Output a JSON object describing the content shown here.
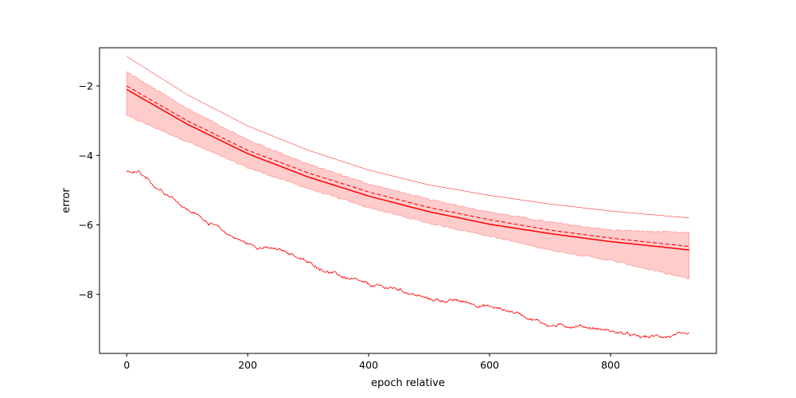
{
  "chart_data": {
    "type": "line",
    "title": "",
    "xlabel": "epoch relative",
    "ylabel": "error",
    "xlim": [
      -45,
      975
    ],
    "ylim": [
      -9.7,
      -0.9
    ],
    "x_ticks": [
      0,
      200,
      400,
      600,
      800
    ],
    "y_ticks": [
      -2,
      -4,
      -6,
      -8
    ],
    "x_tick_labels": [
      "0",
      "200",
      "400",
      "600",
      "800"
    ],
    "y_tick_labels": [
      "−2",
      "−4",
      "−6",
      "−8"
    ],
    "grid": false,
    "legend": "none",
    "color": "#ff0000",
    "band_color": "#ffcccc",
    "x_range": [
      0,
      930
    ],
    "series": [
      {
        "style": "thin",
        "x": [
          0,
          100,
          200,
          300,
          400,
          500,
          600,
          700,
          800,
          930
        ],
        "y": [
          -1.15,
          -2.25,
          -3.15,
          -3.85,
          -4.42,
          -4.85,
          -5.15,
          -5.4,
          -5.6,
          -5.8
        ]
      },
      {
        "style": "dashed",
        "x": [
          0,
          100,
          200,
          300,
          400,
          500,
          600,
          700,
          800,
          930
        ],
        "y": [
          -2.0,
          -3.0,
          -3.85,
          -4.5,
          -5.05,
          -5.5,
          -5.85,
          -6.15,
          -6.38,
          -6.62
        ]
      },
      {
        "style": "solid",
        "x": [
          0,
          100,
          200,
          300,
          400,
          500,
          600,
          700,
          800,
          930
        ],
        "y": [
          -2.1,
          -3.1,
          -3.95,
          -4.62,
          -5.17,
          -5.62,
          -5.98,
          -6.25,
          -6.48,
          -6.72
        ]
      },
      {
        "style": "noisy",
        "x": [
          0,
          20,
          40,
          60,
          80,
          100,
          130,
          160,
          200,
          240,
          270,
          300,
          350,
          400,
          450,
          500,
          550,
          600,
          650,
          700,
          750,
          800,
          850,
          880,
          930
        ],
        "y": [
          -4.45,
          -4.5,
          -4.85,
          -5.0,
          -5.25,
          -5.55,
          -5.85,
          -6.2,
          -6.55,
          -6.7,
          -6.8,
          -7.1,
          -7.45,
          -7.75,
          -7.85,
          -8.15,
          -8.2,
          -8.35,
          -8.55,
          -8.9,
          -8.9,
          -9.05,
          -9.25,
          -9.2,
          -9.2
        ]
      }
    ],
    "band": {
      "x": [
        0,
        100,
        200,
        300,
        400,
        500,
        600,
        700,
        800,
        930
      ],
      "upper": [
        -1.6,
        -2.65,
        -3.55,
        -4.25,
        -4.82,
        -5.27,
        -5.63,
        -5.92,
        -6.15,
        -6.23
      ],
      "lower": [
        -2.85,
        -3.6,
        -4.35,
        -4.95,
        -5.5,
        -5.95,
        -6.32,
        -6.72,
        -7.02,
        -7.55
      ]
    }
  }
}
